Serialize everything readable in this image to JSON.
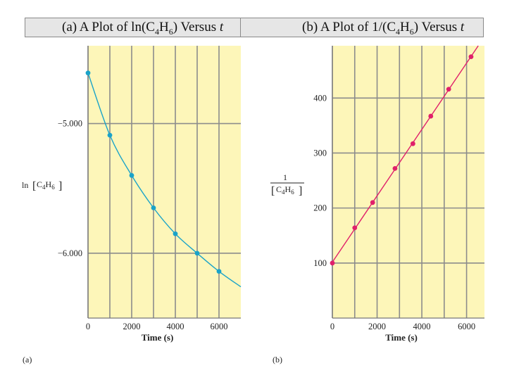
{
  "titles": {
    "a": {
      "prefix": "(a) A Plot of ln(C",
      "sub1": "4",
      "mid": "H",
      "sub2": "6",
      "suffix": ") Versus ",
      "var": "t"
    },
    "b": {
      "prefix": "(b) A Plot of 1/(C",
      "sub1": "4",
      "mid": "H",
      "sub2": "6",
      "suffix": ") Versus ",
      "var": "t"
    }
  },
  "colors": {
    "plot_bg": "#fdf6b9",
    "grid": "#8c8c8c",
    "series_a": "#1aa3c9",
    "series_b": "#e0206b"
  },
  "chart_data": [
    {
      "type": "scatter",
      "panel_label": "(a)",
      "xlabel": "Time (s)",
      "ylabel": "ln [C4H6]",
      "xlim": [
        0,
        7000
      ],
      "ylim": [
        -6.5,
        -4.4
      ],
      "xticks": [
        0,
        2000,
        4000,
        6000
      ],
      "xtick_labels": [
        "0",
        "2000",
        "4000",
        "6000"
      ],
      "yticks": [
        -5.0,
        -6.0
      ],
      "ytick_labels": [
        "−5.000",
        "−6.000"
      ],
      "grid": true,
      "series": [
        {
          "x": [
            0,
            1000,
            2000,
            3000,
            4000,
            5000,
            6000
          ],
          "y": [
            -4.61,
            -5.09,
            -5.4,
            -5.65,
            -5.85,
            -6.0,
            -6.14
          ]
        }
      ],
      "fit": "smooth-curve"
    },
    {
      "type": "scatter",
      "panel_label": "(b)",
      "xlabel": "Time (s)",
      "ylabel": "1/[C4H6]",
      "xlim": [
        0,
        6800
      ],
      "ylim": [
        0,
        495
      ],
      "xticks": [
        0,
        2000,
        4000,
        6000
      ],
      "xtick_labels": [
        "0",
        "2000",
        "4000",
        "6000"
      ],
      "yticks": [
        100,
        200,
        300,
        400
      ],
      "ytick_labels": [
        "100",
        "200",
        "300",
        "400"
      ],
      "grid": true,
      "series": [
        {
          "x": [
            0,
            1000,
            1800,
            2800,
            3600,
            4400,
            5200,
            6200
          ],
          "y": [
            100,
            164,
            210,
            272,
            317,
            367,
            416,
            475
          ]
        }
      ],
      "fit": "straight-line"
    }
  ]
}
